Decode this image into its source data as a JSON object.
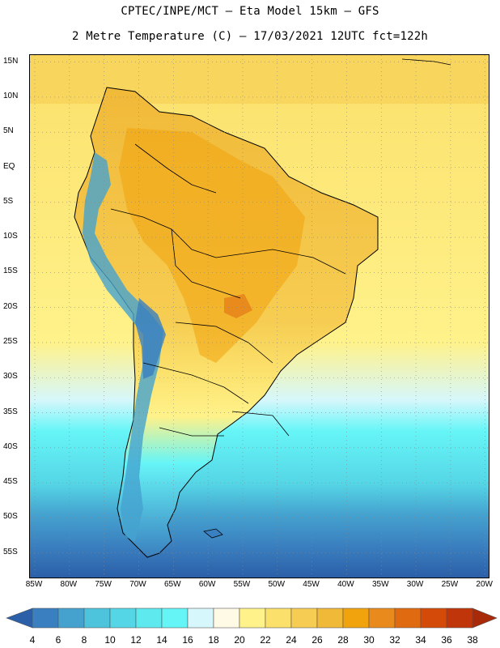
{
  "header": {
    "line1": "CPTEC/INPE/MCT –  Eta Model 15km – GFS",
    "line2": "2 Metre Temperature (C) – 17/03/2021 12UTC fct=122h"
  },
  "map": {
    "lat_labels": [
      "15N",
      "10N",
      "5N",
      "EQ",
      "5S",
      "10S",
      "15S",
      "20S",
      "25S",
      "30S",
      "35S",
      "40S",
      "45S",
      "50S",
      "55S"
    ],
    "lon_labels": [
      "85W",
      "80W",
      "75W",
      "70W",
      "65W",
      "60W",
      "55W",
      "50W",
      "45W",
      "40W",
      "35W",
      "30W",
      "25W",
      "20W"
    ]
  },
  "legend": {
    "levels": [
      "4",
      "6",
      "8",
      "10",
      "12",
      "14",
      "16",
      "18",
      "20",
      "22",
      "24",
      "26",
      "28",
      "30",
      "32",
      "34",
      "36",
      "38"
    ],
    "colors": [
      "#2b5fa8",
      "#3a7fbf",
      "#45a2cf",
      "#4ec3dc",
      "#55d6e6",
      "#5ee9ef",
      "#66f5f7",
      "#d6f7fb",
      "#fffae6",
      "#fff28a",
      "#fbe06b",
      "#f6cd52",
      "#f1b938",
      "#f0a30d",
      "#e88a1c",
      "#e06a10",
      "#d44a08",
      "#c0360a",
      "#a82a08"
    ]
  },
  "colors": {
    "ocean_south": "#2f64ab",
    "ocean_mid": "#5ee9ef",
    "ocean_warm": "#fbe06b",
    "land_warm": "#f1b938",
    "andes_cold": "#45a2cf"
  }
}
